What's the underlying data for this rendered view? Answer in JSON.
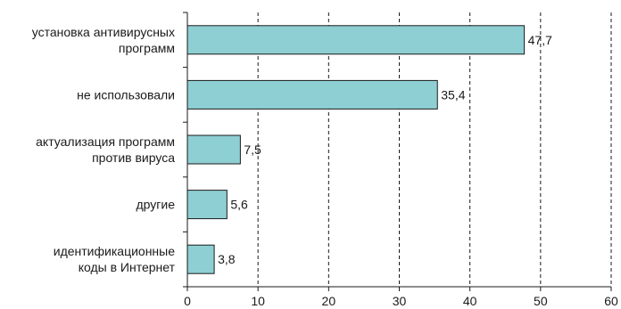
{
  "chart_data": {
    "type": "bar",
    "orientation": "horizontal",
    "title": "",
    "xlabel": "",
    "ylabel": "",
    "categories": [
      [
        "установка антивирусных",
        "программ"
      ],
      [
        "не использовали"
      ],
      [
        "актуализация программ",
        "против вируса"
      ],
      [
        "другие"
      ],
      [
        "идентификационные",
        "коды в Интернет"
      ]
    ],
    "values": [
      47.7,
      35.4,
      7.5,
      5.6,
      3.8
    ],
    "value_labels": [
      "47,7",
      "35,4",
      "7,5",
      "5,6",
      "3,8"
    ],
    "xlim": [
      0,
      60
    ],
    "ticks": [
      0,
      10,
      20,
      30,
      40,
      50,
      60
    ],
    "tick_labels": [
      "0",
      "10",
      "20",
      "30",
      "40",
      "50",
      "60"
    ],
    "grid": "vertical-dashed",
    "legend": "none",
    "colors": {
      "bar_fill": "#8ecfd3",
      "bar_stroke": "#1a1a1a",
      "axis": "#1a1a1a",
      "grid": "#1a1a1a"
    }
  }
}
